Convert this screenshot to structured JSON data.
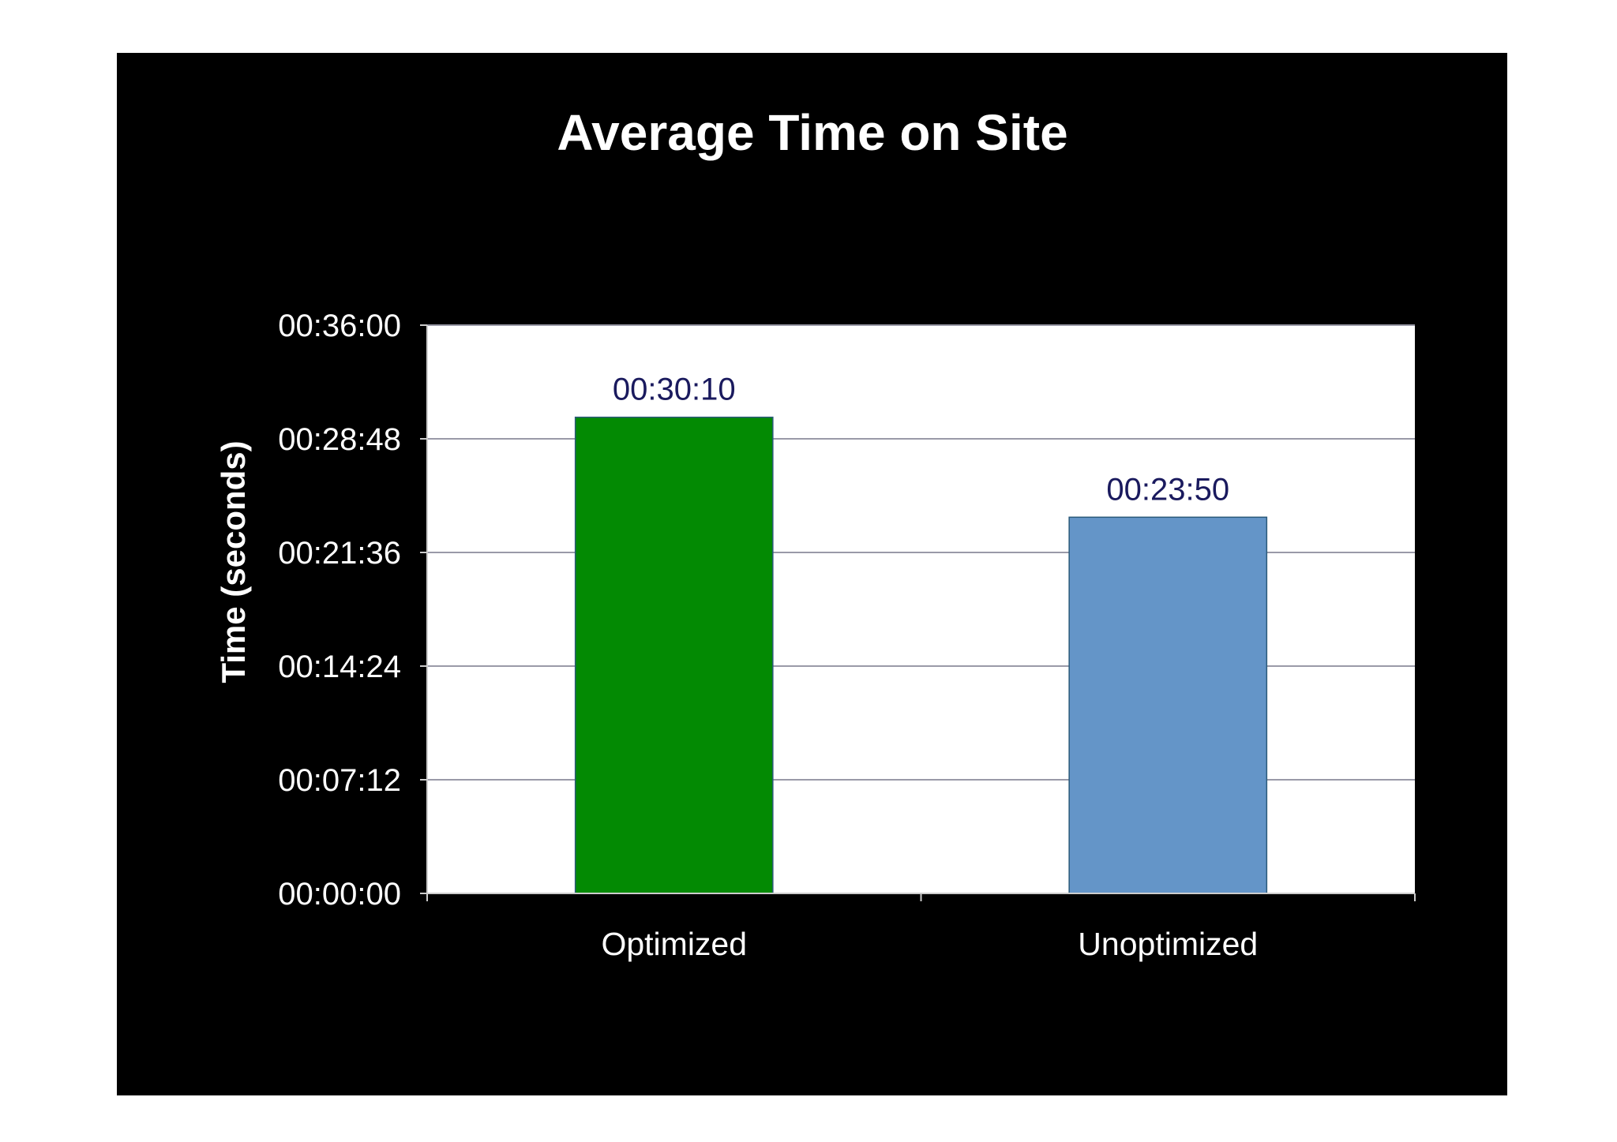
{
  "chart_data": {
    "type": "bar",
    "title": "Average Time on Site",
    "xlabel": "",
    "ylabel": "Time (seconds)",
    "ylim": [
      0,
      2160
    ],
    "yticks": [
      0,
      432,
      864,
      1296,
      1728,
      2160
    ],
    "ytick_labels": [
      "00:00:00",
      "00:07:12",
      "00:14:24",
      "00:21:36",
      "00:28:48",
      "00:36:00"
    ],
    "categories": [
      "Optimized",
      "Unoptimized"
    ],
    "values": [
      1810,
      1430
    ],
    "value_labels": [
      "00:30:10",
      "00:23:50"
    ],
    "colors": [
      "#038a03",
      "#6495c8"
    ],
    "grid": true,
    "legend": "none"
  },
  "style": {
    "background": "#000000",
    "plot_area": "#ffffff",
    "gridline": "#9a9aa8",
    "value_label_color": "#1a1a5e"
  }
}
